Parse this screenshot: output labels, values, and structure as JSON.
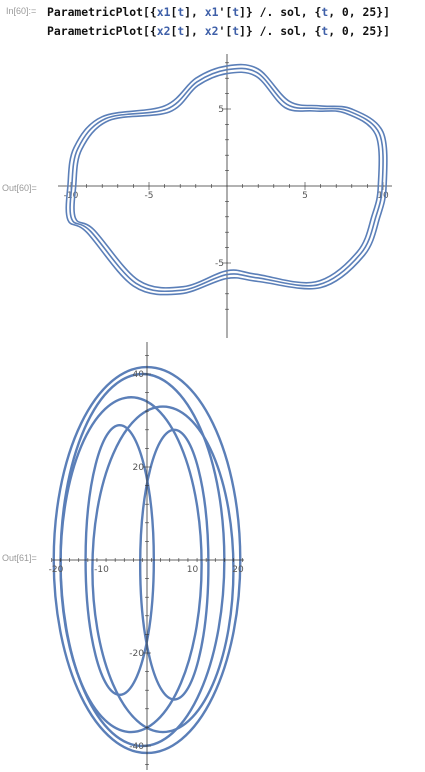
{
  "notebook": {
    "input_label": "In[60]:=",
    "input_lines": [
      {
        "parts": [
          {
            "text": "ParametricPlot[{",
            "style": "plain"
          },
          {
            "text": "x1",
            "style": "var"
          },
          {
            "text": "[",
            "style": "plain"
          },
          {
            "text": "t",
            "style": "var"
          },
          {
            "text": "], ",
            "style": "plain"
          },
          {
            "text": "x1",
            "style": "var"
          },
          {
            "text": "'[",
            "style": "plain"
          },
          {
            "text": "t",
            "style": "var"
          },
          {
            "text": "]} /. sol, {",
            "style": "plain"
          },
          {
            "text": "t",
            "style": "var"
          },
          {
            "text": ", 0, 25}]",
            "style": "plain"
          }
        ]
      },
      {
        "parts": [
          {
            "text": "ParametricPlot[{",
            "style": "plain"
          },
          {
            "text": "x2",
            "style": "var"
          },
          {
            "text": "[",
            "style": "plain"
          },
          {
            "text": "t",
            "style": "var"
          },
          {
            "text": "], ",
            "style": "plain"
          },
          {
            "text": "x2",
            "style": "var"
          },
          {
            "text": "'[",
            "style": "plain"
          },
          {
            "text": "t",
            "style": "var"
          },
          {
            "text": "]} /. sol, {",
            "style": "plain"
          },
          {
            "text": "t",
            "style": "var"
          },
          {
            "text": ", 0, 25}]",
            "style": "plain"
          }
        ]
      }
    ],
    "outputs": [
      {
        "label": "Out[60]="
      },
      {
        "label": "Out[61]="
      }
    ]
  },
  "chart_data": [
    {
      "type": "scatter",
      "subtype": "parametric-curve",
      "title": "",
      "xlabel": "",
      "ylabel": "",
      "xlim": [
        -10.5,
        10.5
      ],
      "ylim": [
        -8.5,
        8.5
      ],
      "x_ticks": [
        -10,
        -5,
        5,
        10
      ],
      "y_ticks": [
        5,
        -5
      ],
      "x_tick_labels": [
        "-10",
        "-5",
        "5",
        "10"
      ],
      "y_tick_labels": [
        "5",
        "-5"
      ],
      "grid": false,
      "line_color": "#5b7fb8",
      "series": [
        {
          "loops": 3,
          "r_base": [
            10.1,
            9.7,
            9.3
          ],
          "description_points": [
            [
              0,
              7.8
            ],
            [
              2,
              7.6
            ],
            [
              4,
              5.5
            ],
            [
              6,
              5.2
            ],
            [
              8,
              5.0
            ],
            [
              10,
              3.5
            ],
            [
              10.2,
              0
            ],
            [
              9.8,
              -2.0
            ],
            [
              8.8,
              -4.5
            ],
            [
              6,
              -6.6
            ],
            [
              2,
              -6.2
            ],
            [
              0,
              -6.0
            ],
            [
              -3,
              -7.0
            ],
            [
              -6,
              -6.5
            ],
            [
              -9,
              -3.0
            ],
            [
              -10.2,
              -2.2
            ],
            [
              -10.2,
              0
            ],
            [
              -9.8,
              2.5
            ],
            [
              -8,
              4.5
            ],
            [
              -4,
              5.2
            ],
            [
              -2,
              7.0
            ]
          ]
        }
      ]
    },
    {
      "type": "scatter",
      "subtype": "parametric-curve",
      "title": "",
      "xlabel": "",
      "ylabel": "",
      "xlim": [
        -21,
        21
      ],
      "ylim": [
        -44,
        44
      ],
      "x_ticks": [
        -20,
        -10,
        10,
        20
      ],
      "y_ticks": [
        40,
        20,
        -20,
        -40
      ],
      "x_tick_labels": [
        "-20",
        "-10",
        "10",
        "20"
      ],
      "y_tick_labels": [
        "40",
        "20",
        "-20",
        "-40"
      ],
      "grid": false,
      "line_color": "#5b7fb8",
      "series": [
        {
          "ellipses": [
            {
              "cx": 0,
              "cy": 0,
              "rx": 20.5,
              "ry": 41.5
            },
            {
              "cx": -3.5,
              "cy": -1,
              "rx": 15.5,
              "ry": 36
            },
            {
              "cx": 3.5,
              "cy": -2,
              "rx": 15.5,
              "ry": 35
            },
            {
              "cx": -6,
              "cy": 0,
              "rx": 7.5,
              "ry": 29
            },
            {
              "cx": 6,
              "cy": -1,
              "rx": 7.5,
              "ry": 29
            },
            {
              "cx": -1,
              "cy": 0,
              "rx": 18,
              "ry": 40
            }
          ]
        }
      ]
    }
  ]
}
